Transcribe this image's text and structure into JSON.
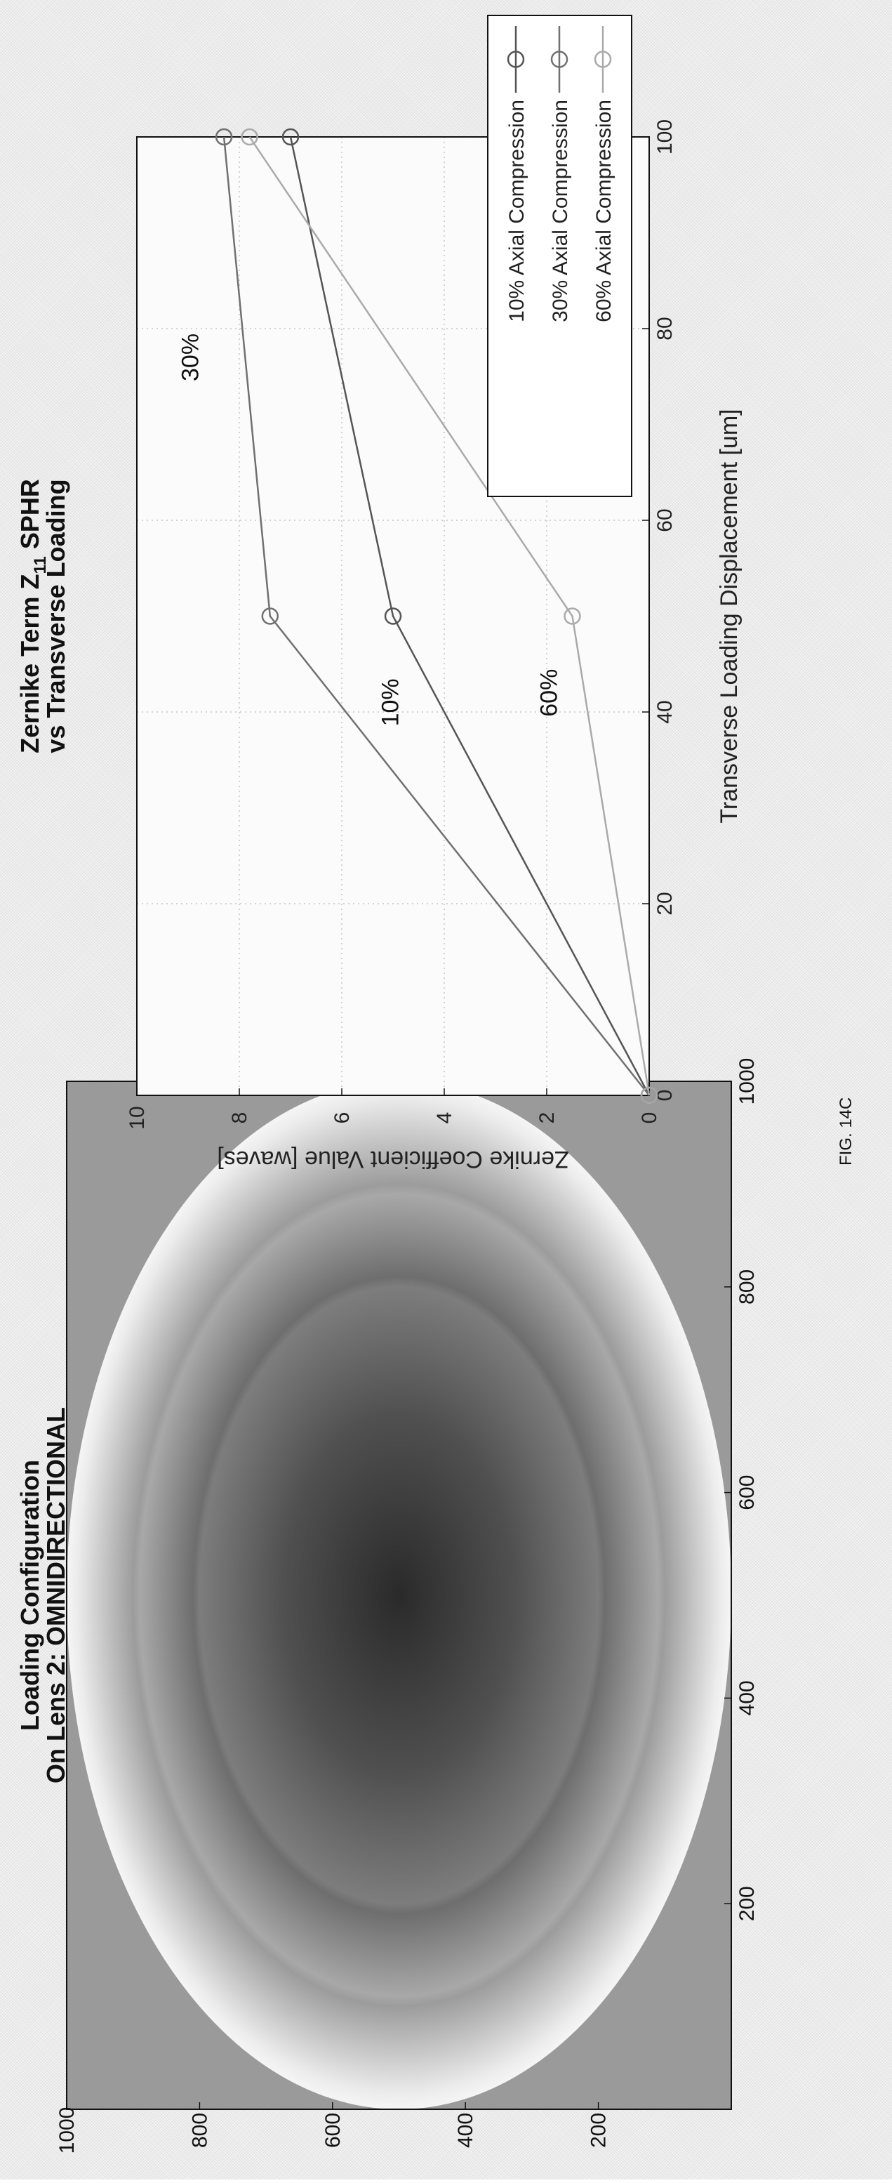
{
  "figure_label": "FIG. 14C",
  "chart_data": [
    {
      "type": "heatmap",
      "title": "Loading Configuration\nOn Lens 2: OMNIDIRECTIONAL",
      "title_lines": [
        "Loading Configuration",
        "On Lens 2: OMNIDIRECTIONAL"
      ],
      "xlabel": "",
      "ylabel": "",
      "xlim": [
        0,
        1000
      ],
      "ylim": [
        0,
        1000
      ],
      "x_ticks": [
        200,
        400,
        600,
        800,
        1000
      ],
      "y_ticks": [
        200,
        400,
        600,
        800,
        1000
      ],
      "description_colors": {
        "background": "#9a9a9a",
        "center": "#2a2a2a",
        "edge": "#f4f4f4"
      }
    },
    {
      "type": "line",
      "title": "Zernike Term Z11 SPHR vs Transverse Loading",
      "title_lines": [
        "Zernike Term Z",
        "11",
        " SPHR",
        "vs Transverse Loading"
      ],
      "xlabel": "Transverse Loading Displacement [um]",
      "ylabel": "Zernike Coefficient Value [waves]",
      "xlim": [
        0,
        100
      ],
      "ylim": [
        0,
        10
      ],
      "x_ticks": [
        0,
        20,
        40,
        60,
        80,
        100
      ],
      "y_ticks": [
        0,
        2,
        4,
        6,
        8,
        10
      ],
      "grid": true,
      "legend_position": "top-left",
      "x": [
        0,
        50,
        100
      ],
      "series": [
        {
          "name": "10% Axial Compression",
          "values": [
            0,
            5.0,
            7.0
          ],
          "color": "#555555",
          "annotation": "10%"
        },
        {
          "name": "30% Axial Compression",
          "values": [
            0,
            7.4,
            8.3
          ],
          "color": "#707070",
          "annotation": "30%"
        },
        {
          "name": "60% Axial Compression",
          "values": [
            0,
            1.5,
            7.8
          ],
          "color": "#aaaaaa",
          "annotation": "60%"
        }
      ]
    }
  ]
}
